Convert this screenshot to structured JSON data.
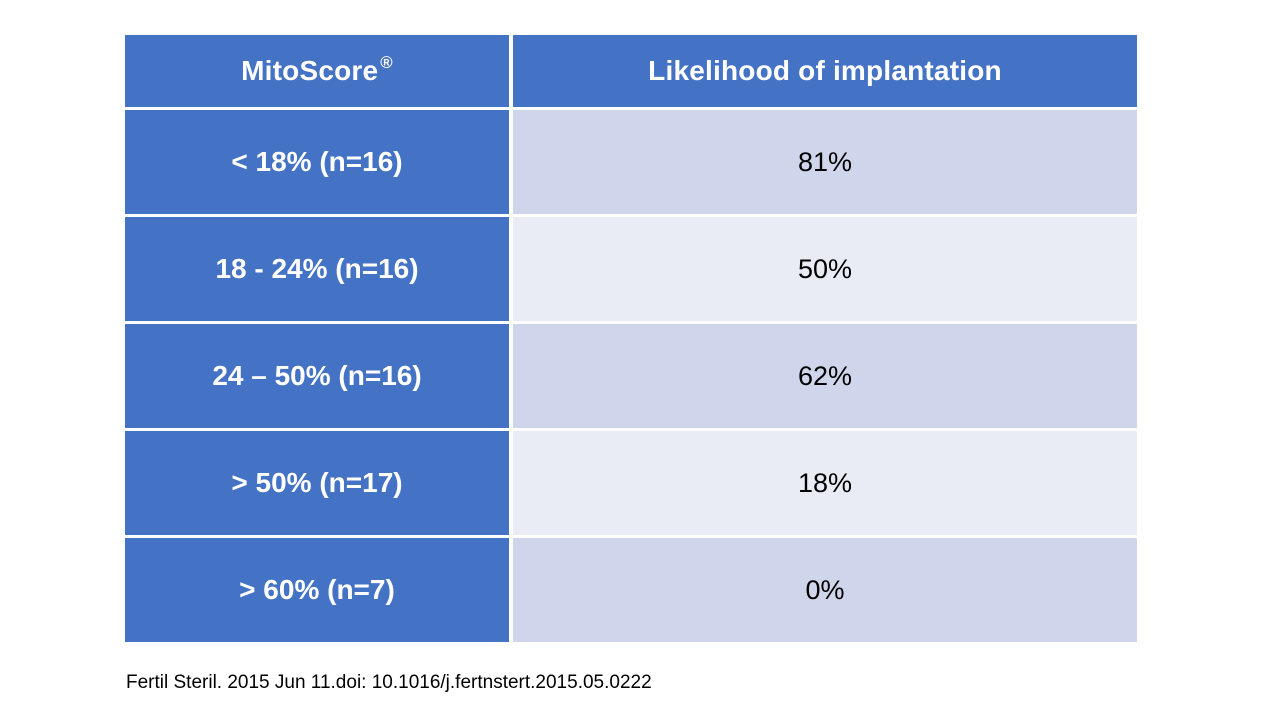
{
  "chart_data": {
    "type": "table",
    "columns": [
      "MitoScore®",
      "Likelihood of implantation"
    ],
    "rows": [
      [
        "< 18% (n=16)",
        "81%"
      ],
      [
        "18 - 24% (n=16)",
        "50%"
      ],
      [
        "24 – 50% (n=16)",
        "62%"
      ],
      [
        "> 50% (n=17)",
        "18%"
      ],
      [
        "> 60% (n=7)",
        "0%"
      ]
    ]
  },
  "header": {
    "col1_label": "MitoScore",
    "col1_mark": "®",
    "col2_label": "Likelihood of implantation"
  },
  "citation": "Fertil Steril. 2015 Jun 11.doi: 10.1016/j.fertnstert.2015.05.0222",
  "colors": {
    "header_blue": "#4472C4",
    "band_dark": "#CFD5EA",
    "band_light": "#E9EBF5",
    "header_text": "#FFFFFF",
    "value_text": "#000000"
  }
}
